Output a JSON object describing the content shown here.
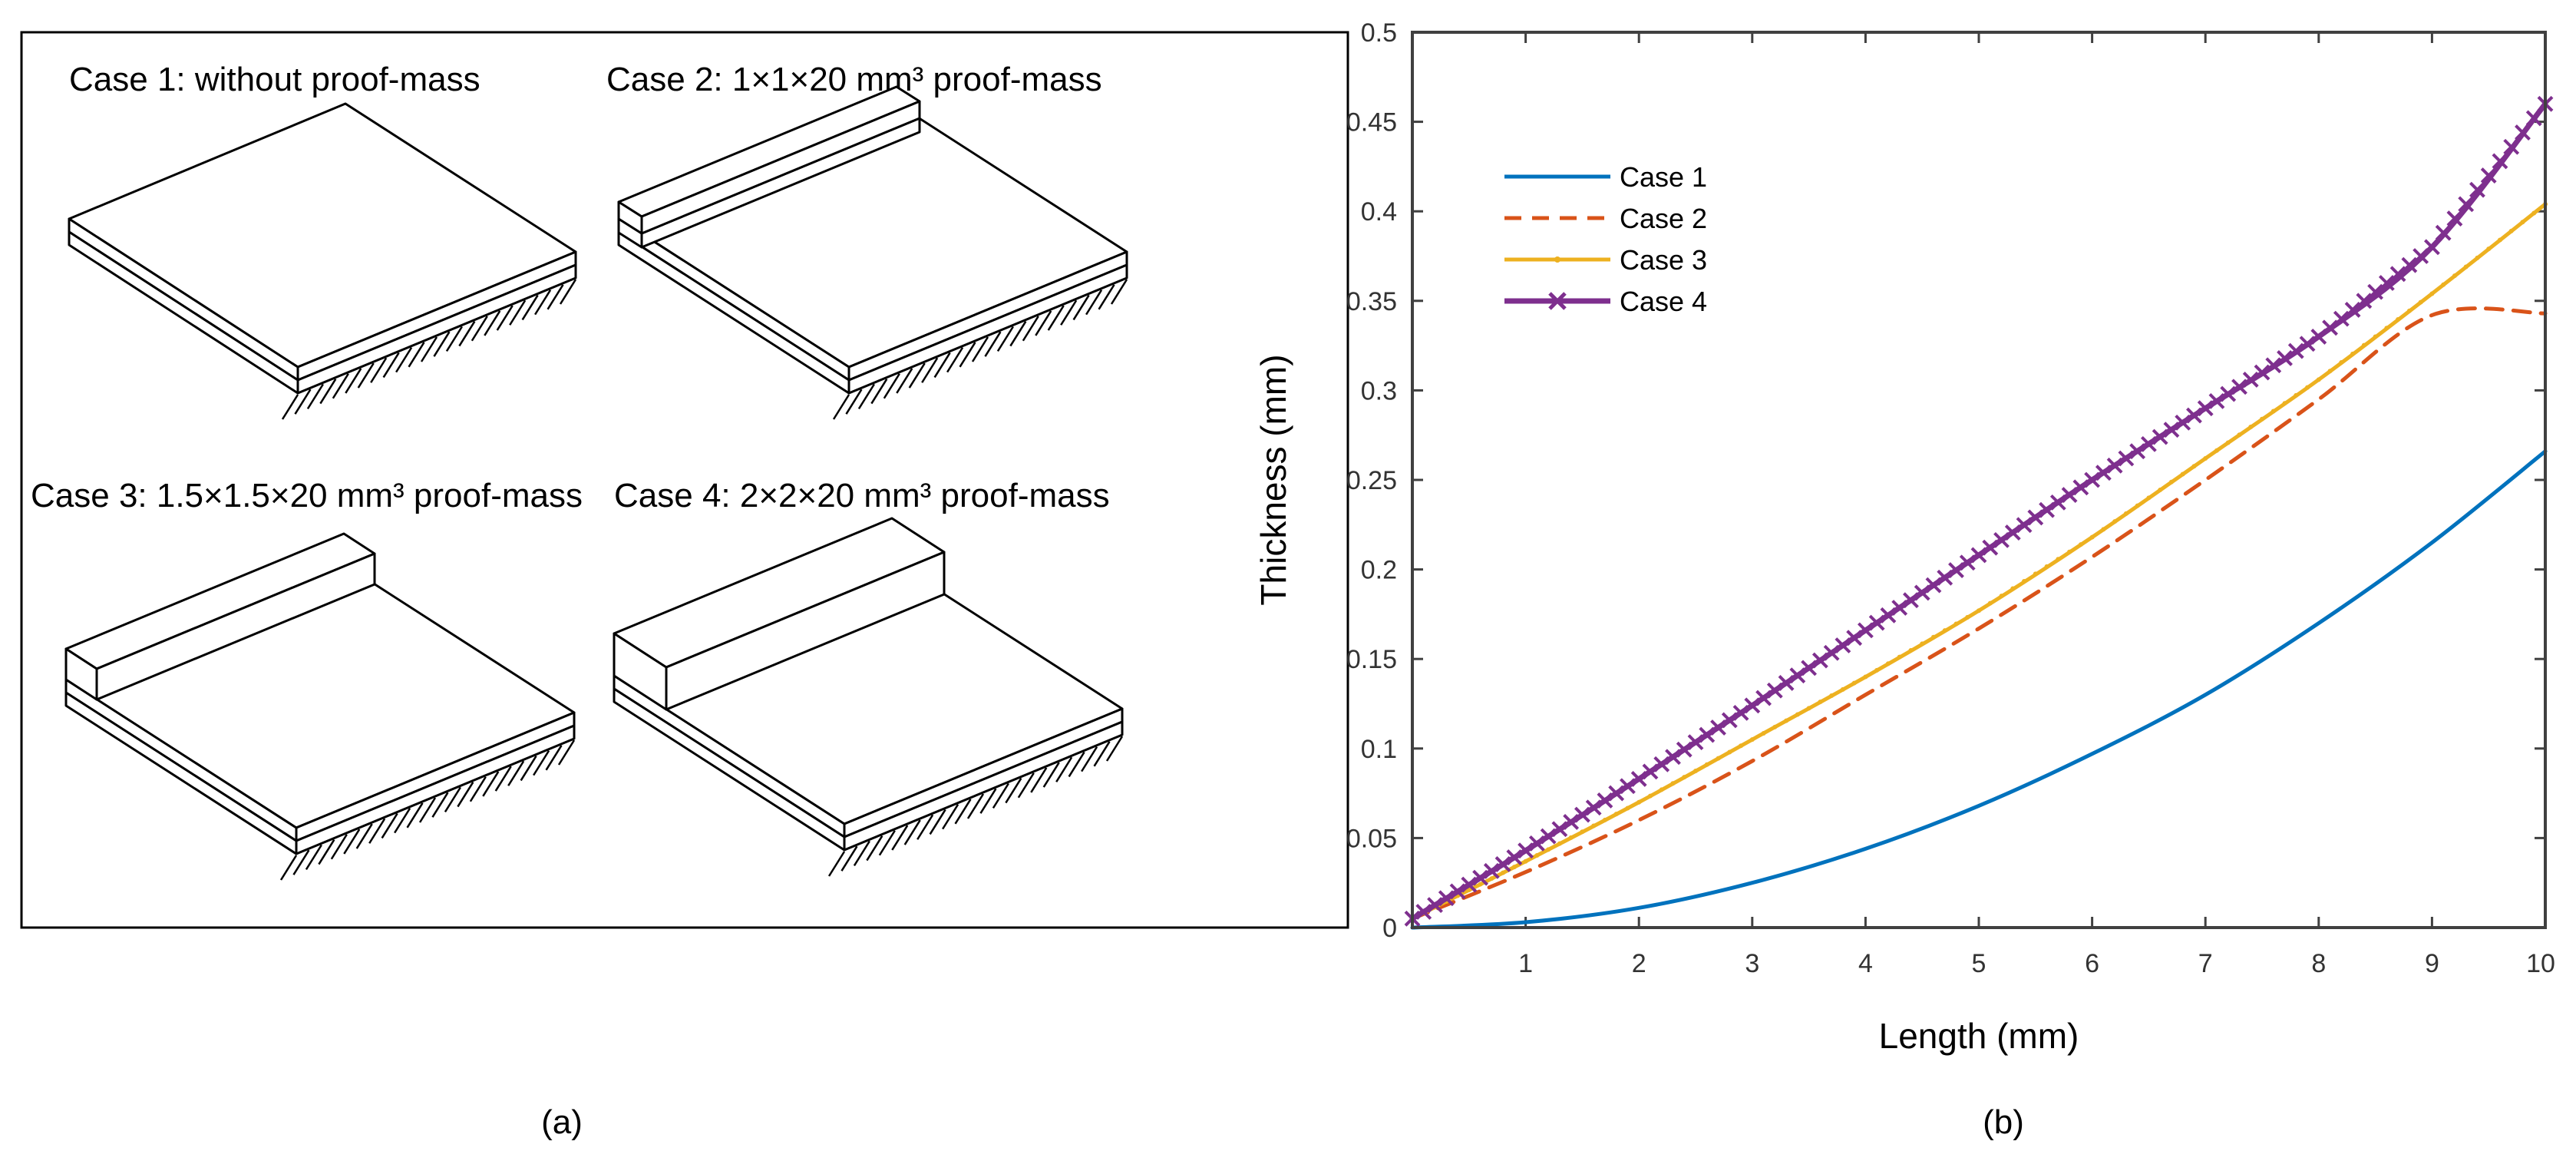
{
  "panel_a": {
    "caption": "(a)",
    "cases": [
      "Case 1: without proof-mass",
      "Case 2: 1×1×20 mm³ proof-mass",
      "Case 3: 1.5×1.5×20 mm³ proof-mass",
      "Case 4: 2×2×20 mm³ proof-mass"
    ]
  },
  "panel_b": {
    "caption": "(b)"
  },
  "chart_data": {
    "type": "line",
    "xlabel": "Length (mm)",
    "ylabel": "Thickness (mm)",
    "xlim": [
      0,
      10
    ],
    "ylim": [
      0,
      0.5
    ],
    "xticks": [
      1,
      2,
      3,
      4,
      5,
      6,
      7,
      8,
      9,
      10
    ],
    "yticks": [
      0,
      0.05,
      0.1,
      0.15,
      0.2,
      0.25,
      0.3,
      0.35,
      0.4,
      0.45,
      0.5
    ],
    "legend_position": "top-left",
    "series": [
      {
        "name": "Case 1",
        "color": "#0072BD",
        "dash": "solid",
        "marker": "none",
        "x": [
          0,
          1,
          2,
          3,
          4,
          5,
          6,
          7,
          8,
          9,
          10
        ],
        "y": [
          0,
          0.003,
          0.011,
          0.025,
          0.044,
          0.068,
          0.097,
          0.13,
          0.17,
          0.215,
          0.266
        ]
      },
      {
        "name": "Case 2",
        "color": "#D95319",
        "dash": "dashed",
        "marker": "none",
        "x": [
          0,
          1,
          2,
          3,
          4,
          5,
          6,
          7,
          8,
          9,
          10
        ],
        "y": [
          0.005,
          0.031,
          0.06,
          0.093,
          0.13,
          0.167,
          0.207,
          0.25,
          0.295,
          0.342,
          0.343
        ]
      },
      {
        "name": "Case 3",
        "color": "#EDB120",
        "dash": "solid",
        "marker": "dot",
        "x": [
          0,
          1,
          2,
          3,
          4,
          5,
          6,
          7,
          8,
          9,
          10
        ],
        "y": [
          0.005,
          0.037,
          0.07,
          0.105,
          0.14,
          0.177,
          0.218,
          0.262,
          0.306,
          0.354,
          0.404
        ]
      },
      {
        "name": "Case 4",
        "color": "#7E2F8E",
        "dash": "solid",
        "marker": "x",
        "x": [
          0,
          1,
          2,
          3,
          4,
          5,
          6,
          7,
          8,
          9,
          10
        ],
        "y": [
          0.005,
          0.043,
          0.083,
          0.124,
          0.166,
          0.208,
          0.25,
          0.29,
          0.33,
          0.38,
          0.46
        ]
      }
    ]
  }
}
